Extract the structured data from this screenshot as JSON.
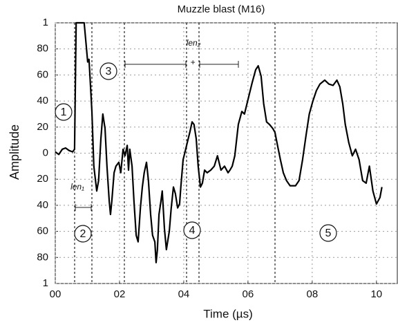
{
  "chart_data": {
    "type": "line",
    "title": "Muzzle blast (M16)",
    "xlabel": "Time (µs)",
    "ylabel": "Amplitude",
    "x": [
      0,
      0.011,
      0.022,
      0.032,
      0.043,
      0.054,
      0.06,
      0.065,
      0.069,
      0.09,
      0.095,
      0.101,
      0.105,
      0.108,
      0.114,
      0.12,
      0.129,
      0.135,
      0.142,
      0.148,
      0.155,
      0.161,
      0.168,
      0.172,
      0.176,
      0.183,
      0.189,
      0.198,
      0.204,
      0.211,
      0.217,
      0.224,
      0.228,
      0.232,
      0.239,
      0.245,
      0.252,
      0.258,
      0.265,
      0.271,
      0.277,
      0.284,
      0.29,
      0.297,
      0.303,
      0.31,
      0.314,
      0.318,
      0.323,
      0.329,
      0.333,
      0.34,
      0.346,
      0.355,
      0.361,
      0.368,
      0.374,
      0.381,
      0.387,
      0.391,
      0.398,
      0.404,
      0.411,
      0.419,
      0.426,
      0.432,
      0.439,
      0.445,
      0.452,
      0.458,
      0.465,
      0.473,
      0.484,
      0.495,
      0.505,
      0.516,
      0.527,
      0.538,
      0.544,
      0.551,
      0.559,
      0.57,
      0.581,
      0.589,
      0.602,
      0.613,
      0.624,
      0.632,
      0.641,
      0.649,
      0.658,
      0.667,
      0.677,
      0.684,
      0.692,
      0.701,
      0.71,
      0.72,
      0.731,
      0.748,
      0.759,
      0.77,
      0.781,
      0.791,
      0.802,
      0.813,
      0.824,
      0.839,
      0.852,
      0.865,
      0.877,
      0.886,
      0.895,
      0.903,
      0.914,
      0.925,
      0.935,
      0.946,
      0.957,
      0.968,
      0.978,
      0.989,
      1.0,
      1.011,
      1.017
    ],
    "values": [
      0.01,
      -0.01,
      0.03,
      0.04,
      0.02,
      0.01,
      0.03,
      1.0,
      1.0,
      1.0,
      0.86,
      0.7,
      0.72,
      0.59,
      0.32,
      -0.1,
      -0.29,
      -0.21,
      0.11,
      0.3,
      0.19,
      -0.1,
      -0.37,
      -0.47,
      -0.37,
      -0.15,
      -0.1,
      -0.07,
      -0.15,
      0.03,
      -0.02,
      0.06,
      -0.13,
      0.03,
      -0.1,
      -0.37,
      -0.63,
      -0.68,
      -0.42,
      -0.26,
      -0.15,
      -0.07,
      -0.21,
      -0.47,
      -0.63,
      -0.68,
      -0.84,
      -0.74,
      -0.47,
      -0.37,
      -0.29,
      -0.58,
      -0.74,
      -0.6,
      -0.42,
      -0.26,
      -0.31,
      -0.42,
      -0.39,
      -0.26,
      -0.05,
      0.01,
      0.08,
      0.16,
      0.24,
      0.22,
      0.11,
      -0.1,
      -0.26,
      -0.23,
      -0.13,
      -0.15,
      -0.13,
      -0.1,
      -0.02,
      -0.13,
      -0.1,
      -0.15,
      -0.13,
      -0.1,
      -0.02,
      0.22,
      0.32,
      0.3,
      0.43,
      0.54,
      0.64,
      0.67,
      0.59,
      0.38,
      0.24,
      0.22,
      0.19,
      0.16,
      0.06,
      -0.05,
      -0.15,
      -0.21,
      -0.25,
      -0.25,
      -0.21,
      -0.05,
      0.14,
      0.3,
      0.4,
      0.48,
      0.53,
      0.56,
      0.53,
      0.52,
      0.56,
      0.51,
      0.38,
      0.22,
      0.08,
      -0.02,
      0.03,
      -0.05,
      -0.21,
      -0.23,
      -0.1,
      -0.29,
      -0.39,
      -0.34,
      -0.26
    ],
    "color": "#000000",
    "xlim": [
      0,
      1.065
    ],
    "ylim": [
      -1,
      1
    ],
    "xticks": [
      {
        "value": 0,
        "label": "00"
      },
      {
        "value": 0.2,
        "label": "02"
      },
      {
        "value": 0.4,
        "label": "04"
      },
      {
        "value": 0.6,
        "label": "06"
      },
      {
        "value": 0.8,
        "label": "08"
      },
      {
        "value": 1,
        "label": "10"
      }
    ],
    "yticks": [
      1,
      {
        "value": 0.8,
        "label": "80"
      },
      {
        "value": 0.6,
        "label": "60"
      },
      {
        "value": 0.4,
        "label": "40"
      },
      {
        "value": 0.2,
        "label": "20"
      },
      0,
      {
        "value": -0.2,
        "label": "20"
      },
      {
        "value": -0.4,
        "label": "40"
      },
      {
        "value": -0.6,
        "label": "60"
      },
      {
        "value": -0.8,
        "label": "80"
      },
      {
        "value": -1,
        "label": "1"
      }
    ],
    "grid": true,
    "annotations": [
      "1",
      "2",
      "3",
      "4",
      "5",
      "len₁",
      "len₂",
      "+"
    ]
  }
}
